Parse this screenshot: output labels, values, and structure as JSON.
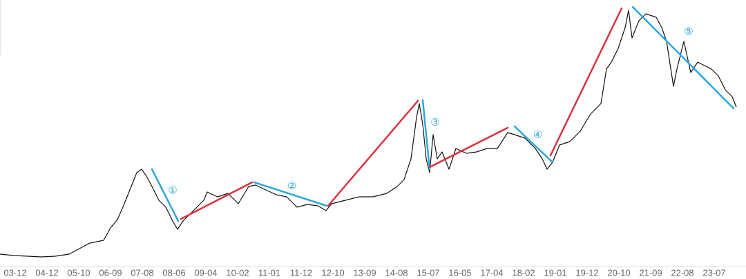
{
  "chart_data": {
    "type": "line",
    "x": [
      0,
      20,
      40,
      60,
      80,
      100,
      115,
      130,
      150,
      160,
      170,
      180,
      190,
      198,
      205,
      212,
      220,
      230,
      240,
      250,
      257,
      265,
      280,
      295,
      300,
      315,
      330,
      345,
      360,
      370,
      385,
      400,
      415,
      430,
      445,
      460,
      472,
      480,
      500,
      520,
      540,
      560,
      575,
      585,
      595,
      603,
      607,
      612,
      617,
      622,
      627,
      633,
      640,
      650,
      660,
      675,
      690,
      705,
      720,
      735,
      745,
      760,
      775,
      785,
      792,
      800,
      810,
      825,
      840,
      855,
      870,
      878,
      885,
      895,
      905,
      910,
      915,
      925,
      935,
      950,
      958,
      965,
      975,
      980,
      990,
      1000,
      1010,
      1020,
      1030,
      1040,
      1050,
      1060,
      1066
    ],
    "series": [
      {
        "color": "#111111",
        "values": [
          17,
          15,
          14,
          13,
          14,
          17,
          25,
          33,
          37,
          55,
          67,
          90,
          115,
          135,
          140,
          130,
          115,
          95,
          85,
          65,
          53,
          65,
          80,
          95,
          107,
          100,
          105,
          90,
          115,
          117,
          110,
          103,
          100,
          85,
          89,
          87,
          80,
          90,
          95,
          100,
          100,
          105,
          115,
          125,
          155,
          215,
          235,
          205,
          155,
          135,
          190,
          155,
          165,
          140,
          170,
          163,
          165,
          170,
          170,
          193,
          190,
          185,
          170,
          155,
          140,
          150,
          175,
          180,
          195,
          220,
          235,
          285,
          295,
          315,
          345,
          370,
          330,
          355,
          365,
          360,
          345,
          325,
          260,
          285,
          325,
          280,
          295,
          290,
          285,
          275,
          255,
          245,
          230
        ]
      }
    ],
    "xlim": [
      0,
      1080
    ],
    "ylim": [
      0,
      385
    ],
    "xticks": [
      {
        "value": 22,
        "label": "03-12"
      },
      {
        "value": 68,
        "label": "04-12"
      },
      {
        "value": 114,
        "label": "05-10"
      },
      {
        "value": 160,
        "label": "06-09"
      },
      {
        "value": 206,
        "label": "07-08"
      },
      {
        "value": 252,
        "label": "08-06"
      },
      {
        "value": 298,
        "label": "09-04"
      },
      {
        "value": 344,
        "label": "10-02"
      },
      {
        "value": 390,
        "label": "11-01"
      },
      {
        "value": 436,
        "label": "11-12"
      },
      {
        "value": 482,
        "label": "12-10"
      },
      {
        "value": 528,
        "label": "13-09"
      },
      {
        "value": 574,
        "label": "14-08"
      },
      {
        "value": 620,
        "label": "15-07"
      },
      {
        "value": 666,
        "label": "16-05"
      },
      {
        "value": 712,
        "label": "17-04"
      },
      {
        "value": 758,
        "label": "18-02"
      },
      {
        "value": 804,
        "label": "19-01"
      },
      {
        "value": 850,
        "label": "19-12"
      },
      {
        "value": 896,
        "label": "20-10"
      },
      {
        "value": 942,
        "label": "21-09"
      },
      {
        "value": 988,
        "label": "22-08"
      },
      {
        "value": 1034,
        "label": "23-07"
      }
    ],
    "annotations": [
      {
        "label": "①",
        "color": "#2aa7dc",
        "x": [
          220,
          258
        ],
        "y": [
          140,
          65
        ]
      },
      {
        "label": "②",
        "color": "#2aa7dc",
        "x": [
          368,
          473
        ],
        "y": [
          121,
          87
        ]
      },
      {
        "label": "③",
        "color": "#2aa7dc",
        "x": [
          612,
          622
        ],
        "y": [
          240,
          140
        ]
      },
      {
        "label": "④",
        "color": "#2aa7dc",
        "x": [
          745,
          800
        ],
        "y": [
          202,
          150
        ]
      },
      {
        "label": "⑤",
        "color": "#2aa7dc",
        "x": [
          916,
          1062
        ],
        "y": [
          375,
          228
        ]
      },
      {
        "color": "#d8323c",
        "x": [
          262,
          365
        ],
        "y": [
          68,
          121
        ]
      },
      {
        "color": "#d8323c",
        "x": [
          475,
          605
        ],
        "y": [
          87,
          239
        ]
      },
      {
        "color": "#d8323c",
        "x": [
          622,
          735
        ],
        "y": [
          143,
          200
        ]
      },
      {
        "color": "#d8323c",
        "x": [
          797,
          900
        ],
        "y": [
          160,
          373
        ]
      }
    ]
  }
}
